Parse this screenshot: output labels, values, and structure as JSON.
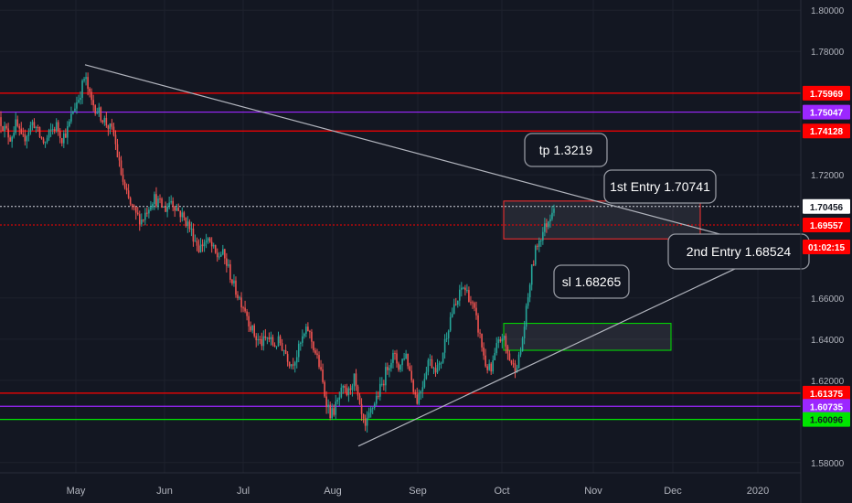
{
  "chart_data": {
    "type": "candlestick",
    "ylim": [
      1.575,
      1.805
    ],
    "x_months": [
      "May",
      "Jun",
      "Jul",
      "Aug",
      "Sep",
      "Oct",
      "Nov",
      "Dec",
      "2020"
    ],
    "y_ticks": [
      "1.80000",
      "1.78000",
      "1.72000",
      "1.66000",
      "1.64000",
      "1.62000",
      "1.58000"
    ],
    "y_tick_values": [
      1.8,
      1.78,
      1.72,
      1.66,
      1.64,
      1.62,
      1.58
    ],
    "last_price": "1.70456",
    "countdown": "01:02:15",
    "price_path": [
      1.748,
      1.742,
      1.738,
      1.745,
      1.736,
      1.741,
      1.746,
      1.739,
      1.735,
      1.741,
      1.744,
      1.738,
      1.742,
      1.752,
      1.758,
      1.768,
      1.756,
      1.752,
      1.748,
      1.744,
      1.74,
      1.725,
      1.712,
      1.705,
      1.7,
      1.698,
      1.704,
      1.709,
      1.706,
      1.703,
      1.708,
      1.704,
      1.7,
      1.696,
      1.69,
      1.684,
      1.688,
      1.686,
      1.68,
      1.682,
      1.675,
      1.666,
      1.66,
      1.655,
      1.646,
      1.64,
      1.638,
      1.641,
      1.637,
      1.639,
      1.634,
      1.628,
      1.632,
      1.64,
      1.645,
      1.636,
      1.627,
      1.612,
      1.603,
      1.608,
      1.615,
      1.613,
      1.622,
      1.606,
      1.596,
      1.605,
      1.612,
      1.618,
      1.628,
      1.632,
      1.626,
      1.634,
      1.622,
      1.61,
      1.618,
      1.63,
      1.627,
      1.626,
      1.64,
      1.652,
      1.657,
      1.666,
      1.662,
      1.654,
      1.642,
      1.628,
      1.624,
      1.636,
      1.642,
      1.632,
      1.626,
      1.631,
      1.65,
      1.672,
      1.686,
      1.692,
      1.698,
      1.706
    ],
    "levels": [
      {
        "label": "1.75969",
        "value": 1.75969,
        "color": "#ff0000",
        "style": "solid"
      },
      {
        "label": "1.75047",
        "value": 1.75047,
        "color": "#9c27ff",
        "style": "solid"
      },
      {
        "label": "1.74128",
        "value": 1.74128,
        "color": "#ff0000",
        "style": "solid"
      },
      {
        "label": "1.69557",
        "value": 1.69557,
        "color": "#ff0000",
        "style": "dotted"
      },
      {
        "label": "1.61375",
        "value": 1.61375,
        "color": "#ff0000",
        "style": "solid"
      },
      {
        "label": "1.60735",
        "value": 1.60735,
        "color": "#9c27ff",
        "style": "solid"
      },
      {
        "label": "1.60096",
        "value": 1.60096,
        "color": "#00e600",
        "style": "solid"
      }
    ],
    "annotations": [
      {
        "text": "tp 1.3219"
      },
      {
        "text": "1st Entry 1.70741"
      },
      {
        "text": "2nd Entry 1.68524"
      },
      {
        "text": "sl 1.68265"
      }
    ],
    "colors": {
      "background": "#131722",
      "up": "#26a69a",
      "down": "#ef5350",
      "trendline": "#b2b5be",
      "grid": "#1e222d"
    }
  }
}
